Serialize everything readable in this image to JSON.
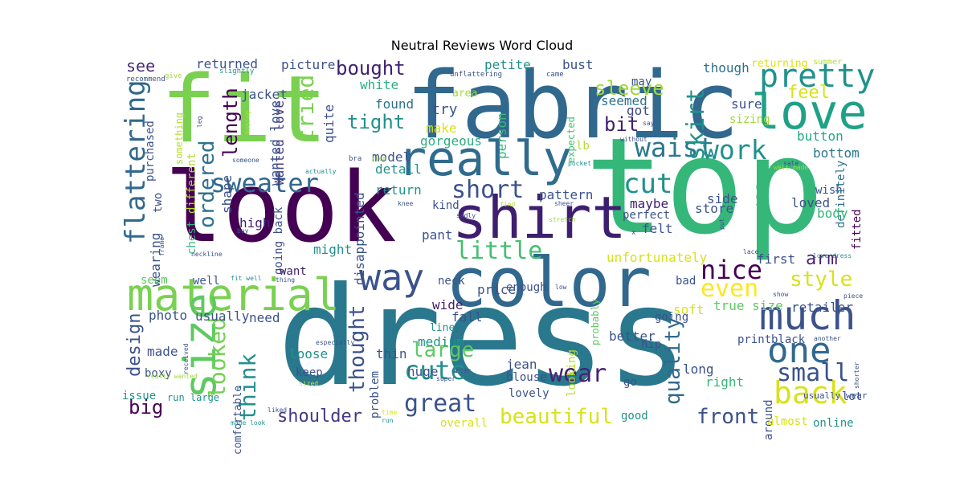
{
  "title": "Neutral Reviews Word Cloud",
  "palette": {
    "purple": "#482173",
    "navy": "#3b528b",
    "blue": "#2c728e",
    "teal": "#21918c",
    "green": "#28ae80",
    "lime": "#5ec962",
    "yellowgreen": "#addc30",
    "yellow": "#d8e219"
  },
  "words": [
    {
      "text": "dress",
      "c": "#2a788e"
    },
    {
      "text": "top",
      "c": "#35b779"
    },
    {
      "text": "fabric",
      "c": "#31688e"
    },
    {
      "text": "fit",
      "c": "#7ad151"
    },
    {
      "text": "look",
      "c": "#440154"
    },
    {
      "text": "color",
      "c": "#31688e"
    },
    {
      "text": "shirt",
      "c": "#3e1f6f"
    },
    {
      "text": "really",
      "c": "#2f6b8e"
    },
    {
      "text": "love",
      "c": "#1fa187"
    },
    {
      "text": "material",
      "c": "#7ad151"
    },
    {
      "text": "way",
      "c": "#3b528b"
    },
    {
      "text": "much",
      "c": "#3b528b"
    },
    {
      "text": "size",
      "c": "#5ec962"
    },
    {
      "text": "one",
      "c": "#31688e"
    },
    {
      "text": "pretty",
      "c": "#21918c"
    },
    {
      "text": "back",
      "c": "#d8e219"
    },
    {
      "text": "waist",
      "c": "#2a788e"
    },
    {
      "text": "work",
      "c": "#21918c"
    },
    {
      "text": "sweater",
      "c": "#31688e"
    },
    {
      "text": "flattering",
      "c": "#31688e"
    },
    {
      "text": "little",
      "c": "#44bf70"
    },
    {
      "text": "cut",
      "c": "#21918c"
    },
    {
      "text": "nice",
      "c": "#440154"
    },
    {
      "text": "short",
      "c": "#3b528b"
    },
    {
      "text": "ordered",
      "c": "#2c728e"
    },
    {
      "text": "tried",
      "c": "#7ad151"
    },
    {
      "text": "looked",
      "c": "#75d054"
    },
    {
      "text": "think",
      "c": "#21918c"
    },
    {
      "text": "cute",
      "c": "#21918c"
    },
    {
      "text": "great",
      "c": "#3b528b"
    },
    {
      "text": "wear",
      "c": "#482173"
    },
    {
      "text": "small",
      "c": "#3b528b"
    },
    {
      "text": "even",
      "c": "#fde725"
    },
    {
      "text": "style",
      "c": "#d8e219"
    },
    {
      "text": "skirt",
      "c": "#21918c"
    },
    {
      "text": "quality",
      "c": "#31688e"
    },
    {
      "text": "front",
      "c": "#3b528b"
    },
    {
      "text": "beautiful",
      "c": "#d8e219"
    },
    {
      "text": "shoulder",
      "c": "#443983"
    },
    {
      "text": "tight",
      "c": "#21918c"
    },
    {
      "text": "sleeve",
      "c": "#9fda3a"
    },
    {
      "text": "feel",
      "c": "#d8e219"
    },
    {
      "text": "bit",
      "c": "#3e1f6f"
    },
    {
      "text": "large",
      "c": "#5ec962"
    },
    {
      "text": "thought",
      "c": "#3b528b"
    },
    {
      "text": "length",
      "c": "#440154"
    },
    {
      "text": "arm",
      "c": "#482173"
    },
    {
      "text": "bought",
      "c": "#3e1f6f"
    },
    {
      "text": "big",
      "c": "#440154"
    },
    {
      "text": "design",
      "c": "#3b528b"
    },
    {
      "text": "still",
      "c": "#35b779"
    },
    {
      "text": "see",
      "c": "#472c7a"
    },
    {
      "text": "returned",
      "c": "#3b528b"
    },
    {
      "text": "picture",
      "c": "#3b528b"
    },
    {
      "text": "petite",
      "c": "#21918c"
    },
    {
      "text": "bust",
      "c": "#3b528b"
    },
    {
      "text": "though",
      "c": "#2c728e"
    },
    {
      "text": "returning",
      "c": "#d8e219"
    },
    {
      "text": "summer",
      "c": "#b5de2b"
    },
    {
      "text": "white",
      "c": "#2ab07f"
    },
    {
      "text": "jacket",
      "c": "#3b528b"
    },
    {
      "text": "wanted love",
      "c": "#443983"
    },
    {
      "text": "found",
      "c": "#2c728e"
    },
    {
      "text": "try",
      "c": "#3b528b"
    },
    {
      "text": "area",
      "c": "#9fda3a"
    },
    {
      "text": "make",
      "c": "#d8e219"
    },
    {
      "text": "gorgeous",
      "c": "#2ab07f"
    },
    {
      "text": "person",
      "c": "#35b779"
    },
    {
      "text": "expected",
      "c": "#44bf70"
    },
    {
      "text": "got",
      "c": "#3e4989"
    },
    {
      "text": "seemed",
      "c": "#2c728e"
    },
    {
      "text": "may",
      "c": "#3b528b"
    },
    {
      "text": "sure",
      "c": "#3b528b"
    },
    {
      "text": "sizing",
      "c": "#9fda3a"
    },
    {
      "text": "button",
      "c": "#22a884"
    },
    {
      "text": "bottom",
      "c": "#2a788e"
    },
    {
      "text": "definitely",
      "c": "#2c728e"
    },
    {
      "text": "model",
      "c": "#3b528b"
    },
    {
      "text": "detail",
      "c": "#21918c"
    },
    {
      "text": "lb",
      "c": "#b5de2b"
    },
    {
      "text": "quite",
      "c": "#3b528b"
    },
    {
      "text": "wanted love",
      "c": "#3b528b"
    },
    {
      "text": "purchased",
      "c": "#3b528b"
    },
    {
      "text": "something",
      "c": "#b5de2b"
    },
    {
      "text": "different",
      "c": "#b5de2b"
    },
    {
      "text": "shape",
      "c": "#3b528b"
    },
    {
      "text": "two",
      "c": "#3b528b"
    },
    {
      "text": "wearing",
      "c": "#3b528b"
    },
    {
      "text": "high",
      "c": "#3e1f6f"
    },
    {
      "text": "chest",
      "c": "#35b779"
    },
    {
      "text": "going back",
      "c": "#3b528b"
    },
    {
      "text": "might",
      "c": "#21918c"
    },
    {
      "text": "disappointed",
      "c": "#3b528b"
    },
    {
      "text": "return",
      "c": "#21918c"
    },
    {
      "text": "kind",
      "c": "#3b528b"
    },
    {
      "text": "pattern",
      "c": "#3b528b"
    },
    {
      "text": "maybe",
      "c": "#3e1f6f"
    },
    {
      "text": "felt",
      "c": "#3b528b"
    },
    {
      "text": "perfect",
      "c": "#3b528b"
    },
    {
      "text": "side",
      "c": "#3b528b"
    },
    {
      "text": "store",
      "c": "#3b528b"
    },
    {
      "text": "wish",
      "c": "#3b528b"
    },
    {
      "text": "loved",
      "c": "#3b528b"
    },
    {
      "text": "body",
      "c": "#35b779"
    },
    {
      "text": "fitted",
      "c": "#440154"
    },
    {
      "text": "pant",
      "c": "#3b528b"
    },
    {
      "text": "unfortunately",
      "c": "#d8e219"
    },
    {
      "text": "first",
      "c": "#3b528b"
    },
    {
      "text": "retailer",
      "c": "#3b528b"
    },
    {
      "text": "neck",
      "c": "#3b528b"
    },
    {
      "text": "wide",
      "c": "#3e1f6f"
    },
    {
      "text": "price",
      "c": "#3b528b"
    },
    {
      "text": "enough",
      "c": "#3b528b"
    },
    {
      "text": "probably",
      "c": "#5ec962"
    },
    {
      "text": "bad",
      "c": "#3b528b"
    },
    {
      "text": "true size",
      "c": "#5ec962"
    },
    {
      "text": "soft",
      "c": "#d8e219"
    },
    {
      "text": "going",
      "c": "#3b528b"
    },
    {
      "text": "photo",
      "c": "#3b528b"
    },
    {
      "text": "usually",
      "c": "#3b528b"
    },
    {
      "text": "need",
      "c": "#3b528b"
    },
    {
      "text": "fall",
      "c": "#3b528b"
    },
    {
      "text": "line",
      "c": "#21918c"
    },
    {
      "text": "thin",
      "c": "#3b528b"
    },
    {
      "text": "medium",
      "c": "#21918c"
    },
    {
      "text": "jean",
      "c": "#3b528b"
    },
    {
      "text": "looking",
      "c": "#b5de2b"
    },
    {
      "text": "better",
      "c": "#3b528b"
    },
    {
      "text": "hip",
      "c": "#3b528b"
    },
    {
      "text": "print",
      "c": "#3b528b"
    },
    {
      "text": "black",
      "c": "#3b528b"
    },
    {
      "text": "long",
      "c": "#3b528b"
    },
    {
      "text": "right",
      "c": "#35b779"
    },
    {
      "text": "around",
      "c": "#3b528b"
    },
    {
      "text": "lot",
      "c": "#3b528b"
    },
    {
      "text": "made",
      "c": "#3b528b"
    },
    {
      "text": "boxy",
      "c": "#3b528b"
    },
    {
      "text": "comfortable",
      "c": "#3b528b"
    },
    {
      "text": "loose",
      "c": "#21918c"
    },
    {
      "text": "keep",
      "c": "#3b528b"
    },
    {
      "text": "problem",
      "c": "#3b528b"
    },
    {
      "text": "huge",
      "c": "#3b528b"
    },
    {
      "text": "blouse",
      "c": "#3b528b"
    },
    {
      "text": "lovely",
      "c": "#3b528b"
    },
    {
      "text": "go",
      "c": "#3b528b"
    },
    {
      "text": "seem",
      "c": "#5ec962"
    },
    {
      "text": "well",
      "c": "#3b528b"
    },
    {
      "text": "want",
      "c": "#3e1f6f"
    },
    {
      "text": "issue",
      "c": "#21918c"
    },
    {
      "text": "run large",
      "c": "#21918c"
    },
    {
      "text": "good",
      "c": "#21918c"
    },
    {
      "text": "overall",
      "c": "#d8e219"
    },
    {
      "text": "almost",
      "c": "#d8e219"
    },
    {
      "text": "online",
      "c": "#21918c"
    },
    {
      "text": "usually wear",
      "c": "#3b528b"
    },
    {
      "text": "recommend",
      "c": "#3b528b"
    },
    {
      "text": "give",
      "c": "#9fda3a"
    },
    {
      "text": "slightly",
      "c": "#21918c"
    },
    {
      "text": "unflattering",
      "c": "#3b528b"
    },
    {
      "text": "came",
      "c": "#3b528b"
    },
    {
      "text": "leg",
      "c": "#3b528b"
    },
    {
      "text": "hoping",
      "c": "#b5de2b"
    },
    {
      "text": "say",
      "c": "#3b528b"
    },
    {
      "text": "without",
      "c": "#3b528b"
    },
    {
      "text": "well made",
      "c": "#9fda3a"
    },
    {
      "text": "someone",
      "c": "#3b528b"
    },
    {
      "text": "actually",
      "c": "#21918c"
    },
    {
      "text": "bra",
      "c": "#3b528b"
    },
    {
      "text": "item",
      "c": "#9fda3a"
    },
    {
      "text": "sale",
      "c": "#3b528b"
    },
    {
      "text": "pocket",
      "c": "#21918c"
    },
    {
      "text": "knee",
      "c": "#3b528b"
    },
    {
      "text": "find",
      "c": "#b5de2b"
    },
    {
      "text": "sheer",
      "c": "#3b528b"
    },
    {
      "text": "sadly",
      "c": "#3b528b"
    },
    {
      "text": "stretch",
      "c": "#9fda3a"
    },
    {
      "text": "x",
      "c": "#3b528b"
    },
    {
      "text": "buy",
      "c": "#3b528b"
    },
    {
      "text": "put",
      "c": "#3b528b"
    },
    {
      "text": "frame",
      "c": "#3b528b"
    },
    {
      "text": "neckline",
      "c": "#3b528b"
    },
    {
      "text": "lace",
      "c": "#3b528b"
    },
    {
      "text": "love dress",
      "c": "#21918c"
    },
    {
      "text": "fit well",
      "c": "#21918c"
    },
    {
      "text": "thing",
      "c": "#3b528b"
    },
    {
      "text": "low",
      "c": "#3b528b"
    },
    {
      "text": "show",
      "c": "#3b528b"
    },
    {
      "text": "piece",
      "c": "#3b528b"
    },
    {
      "text": "received",
      "c": "#3b528b"
    },
    {
      "text": "especially",
      "c": "#3b528b"
    },
    {
      "text": "another",
      "c": "#3b528b"
    },
    {
      "text": "shorter",
      "c": "#3b528b"
    },
    {
      "text": "really wanted",
      "c": "#9fda3a"
    },
    {
      "text": "order",
      "c": "#3b528b"
    },
    {
      "text": "sized",
      "c": "#d8e219"
    },
    {
      "text": "liked",
      "c": "#3b528b"
    },
    {
      "text": "time",
      "c": "#d8e219"
    },
    {
      "text": "run",
      "c": "#21918c"
    },
    {
      "text": "made look",
      "c": "#21918c"
    },
    {
      "text": "super",
      "c": "#3b528b"
    }
  ]
}
